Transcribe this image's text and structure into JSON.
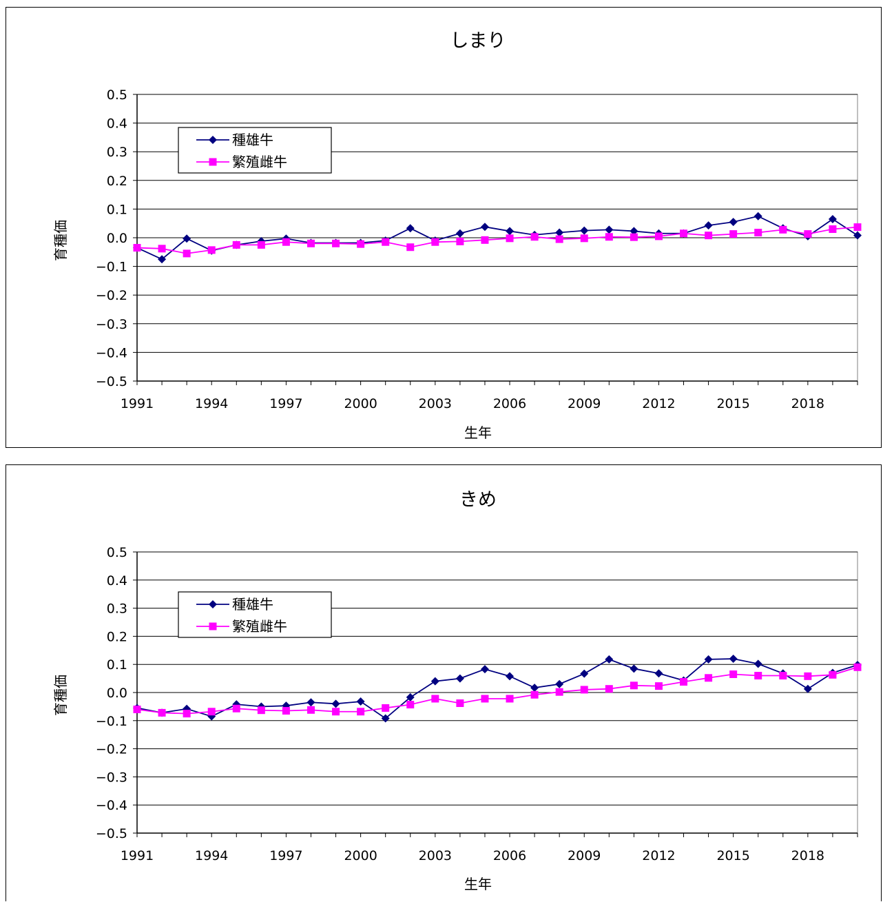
{
  "colors": {
    "series1": "#000080",
    "series2": "#FF00FF",
    "grid": "#000000",
    "background": "#FFFFFF"
  },
  "chart_data": [
    {
      "type": "line",
      "title": "しまり",
      "xlabel": "生年",
      "ylabel": "育種価",
      "x": [
        1991,
        1992,
        1993,
        1994,
        1995,
        1996,
        1997,
        1998,
        1999,
        2000,
        2001,
        2002,
        2003,
        2004,
        2005,
        2006,
        2007,
        2008,
        2009,
        2010,
        2011,
        2012,
        2013,
        2014,
        2015,
        2016,
        2017,
        2018,
        2019,
        2020
      ],
      "xtick_labels": [
        "1991",
        "1994",
        "1997",
        "2000",
        "2003",
        "2006",
        "2009",
        "2012",
        "2015",
        "2018"
      ],
      "ylim": [
        -0.5,
        0.5
      ],
      "ytick_labels": [
        "0.5",
        "0.4",
        "0.3",
        "0.2",
        "0.1",
        "0.0",
        "−0.1",
        "−0.2",
        "−0.3",
        "−0.4",
        "−0.5"
      ],
      "grid": true,
      "legend": "top-left",
      "series": [
        {
          "name": "種雄牛",
          "marker": "diamond",
          "values": [
            -0.035,
            -0.075,
            -0.003,
            -0.045,
            -0.025,
            -0.012,
            -0.003,
            -0.018,
            -0.018,
            -0.018,
            -0.01,
            0.033,
            -0.01,
            0.015,
            0.038,
            0.023,
            0.01,
            0.018,
            0.025,
            0.028,
            0.023,
            0.015,
            0.015,
            0.043,
            0.055,
            0.075,
            0.033,
            0.005,
            0.065,
            0.008
          ]
        },
        {
          "name": "繁殖雌牛",
          "marker": "square",
          "values": [
            -0.035,
            -0.038,
            -0.055,
            -0.043,
            -0.025,
            -0.025,
            -0.015,
            -0.02,
            -0.02,
            -0.022,
            -0.015,
            -0.033,
            -0.015,
            -0.013,
            -0.008,
            -0.002,
            0.003,
            -0.005,
            -0.002,
            0.003,
            0.002,
            0.005,
            0.015,
            0.008,
            0.013,
            0.018,
            0.028,
            0.013,
            0.03,
            0.037
          ]
        }
      ]
    },
    {
      "type": "line",
      "title": "きめ",
      "xlabel": "生年",
      "ylabel": "育種価",
      "x": [
        1991,
        1992,
        1993,
        1994,
        1995,
        1996,
        1997,
        1998,
        1999,
        2000,
        2001,
        2002,
        2003,
        2004,
        2005,
        2006,
        2007,
        2008,
        2009,
        2010,
        2011,
        2012,
        2013,
        2014,
        2015,
        2016,
        2017,
        2018,
        2019,
        2020
      ],
      "xtick_labels": [
        "1991",
        "1994",
        "1997",
        "2000",
        "2003",
        "2006",
        "2009",
        "2012",
        "2015",
        "2018"
      ],
      "ylim": [
        -0.5,
        0.5
      ],
      "ytick_labels": [
        "0.5",
        "0.4",
        "0.3",
        "0.2",
        "0.1",
        "0.0",
        "−0.1",
        "−0.2",
        "−0.3",
        "−0.4",
        "−0.5"
      ],
      "grid": true,
      "legend": "top-left",
      "series": [
        {
          "name": "種雄牛",
          "marker": "diamond",
          "values": [
            -0.055,
            -0.072,
            -0.058,
            -0.085,
            -0.042,
            -0.05,
            -0.047,
            -0.035,
            -0.04,
            -0.032,
            -0.092,
            -0.017,
            0.04,
            0.05,
            0.083,
            0.058,
            0.017,
            0.03,
            0.067,
            0.118,
            0.085,
            0.068,
            0.043,
            0.118,
            0.12,
            0.102,
            0.068,
            0.013,
            0.07,
            0.098
          ]
        },
        {
          "name": "繁殖雌牛",
          "marker": "square",
          "values": [
            -0.06,
            -0.072,
            -0.075,
            -0.068,
            -0.057,
            -0.063,
            -0.065,
            -0.062,
            -0.068,
            -0.068,
            -0.055,
            -0.043,
            -0.022,
            -0.038,
            -0.022,
            -0.022,
            -0.008,
            0.002,
            0.01,
            0.013,
            0.025,
            0.023,
            0.038,
            0.052,
            0.065,
            0.06,
            0.06,
            0.058,
            0.063,
            0.09
          ]
        }
      ]
    }
  ]
}
